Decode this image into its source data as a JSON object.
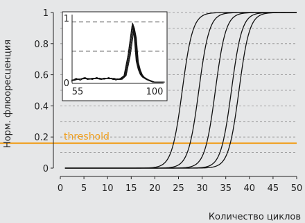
{
  "chart_data": [
    {
      "type": "line",
      "title": "",
      "xlabel": "Количество циклов",
      "ylabel": "Норм. флюоресценция",
      "xlim": [
        0,
        50
      ],
      "ylim": [
        0,
        1
      ],
      "x_ticks": [
        0,
        5,
        10,
        15,
        20,
        25,
        30,
        35,
        40,
        45,
        50
      ],
      "y_ticks": [
        0,
        0.2,
        0.4,
        0.6,
        0.8,
        1
      ],
      "y_tick_labels": [
        "0",
        "0.2",
        "0.4",
        "0.6",
        "0.8",
        "1"
      ],
      "grid": "horizontal dashed lines every 0.1",
      "line_color": "#111111",
      "threshold": {
        "label": "threshold",
        "value": 0.16,
        "color": "#f0a020"
      },
      "series": [
        {
          "midpoint": 25.8,
          "slope": 0.9
        },
        {
          "midpoint": 29.3,
          "slope": 0.9
        },
        {
          "midpoint": 32.8,
          "slope": 0.9
        },
        {
          "midpoint": 36.2,
          "slope": 0.9
        },
        {
          "midpoint": 37.8,
          "slope": 0.9
        }
      ],
      "x_start": 1
    },
    {
      "type": "line",
      "title": "",
      "xlabel": "",
      "ylabel": "",
      "xlim": [
        55,
        100
      ],
      "ylim": [
        0,
        1
      ],
      "x_tick_labels": [
        "55",
        "100"
      ],
      "y_tick_labels": [
        "0",
        "1"
      ],
      "dashed_levels": [
        0.95,
        0.5
      ],
      "peak_center": 85,
      "peak_height": 0.92,
      "baseline": [
        [
          55,
          0.04
        ],
        [
          57,
          0.07
        ],
        [
          59,
          0.06
        ],
        [
          61,
          0.08
        ],
        [
          63,
          0.07
        ],
        [
          65,
          0.07
        ],
        [
          67,
          0.08
        ],
        [
          69,
          0.07
        ],
        [
          71,
          0.07
        ],
        [
          73,
          0.08
        ],
        [
          75,
          0.07
        ],
        [
          77,
          0.06
        ],
        [
          79,
          0.07
        ],
        [
          81,
          0.12
        ],
        [
          83,
          0.45
        ],
        [
          85,
          0.92
        ],
        [
          86,
          0.75
        ],
        [
          87,
          0.35
        ],
        [
          88,
          0.22
        ],
        [
          89,
          0.14
        ],
        [
          90,
          0.1
        ],
        [
          92,
          0.06
        ],
        [
          95,
          0.02
        ],
        [
          100,
          0.02
        ]
      ]
    }
  ]
}
